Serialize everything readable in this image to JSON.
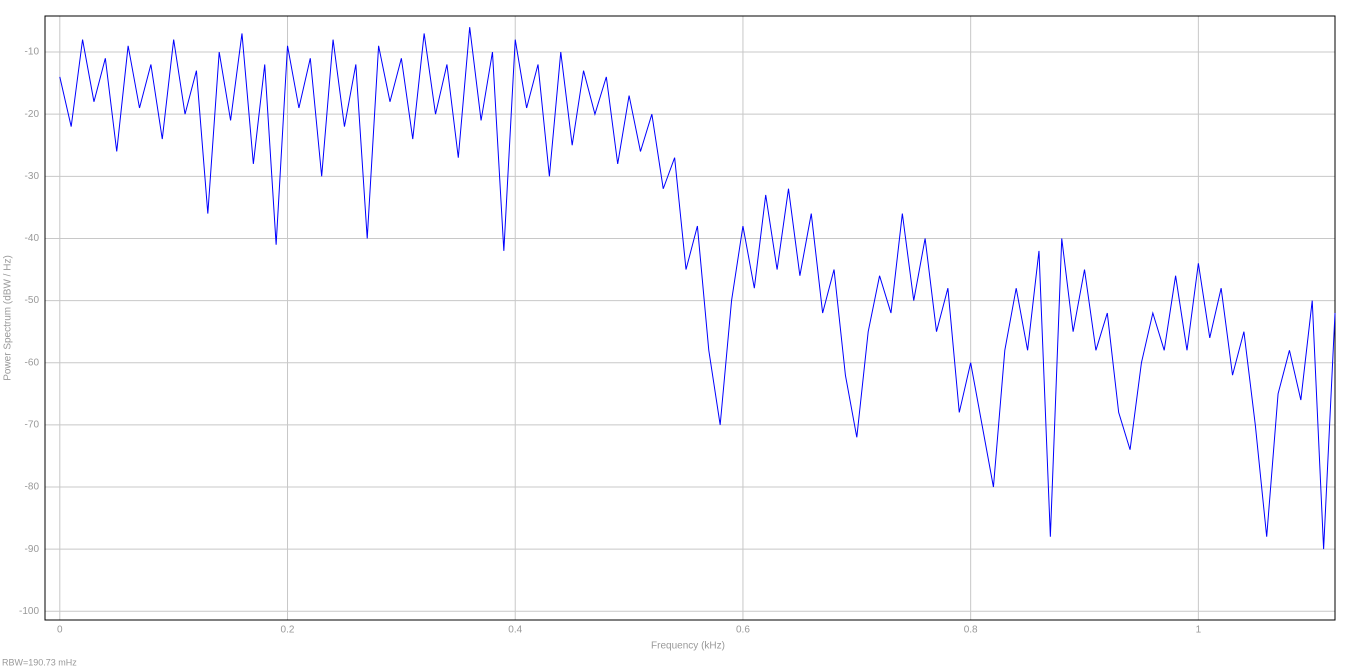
{
  "chart_data": {
    "type": "line",
    "xlabel": "Frequency (kHz)",
    "ylabel": "Power Spectrum (dBW / Hz)",
    "annotation": "RBW=190.73 mHz",
    "xlim": [
      -0.013,
      1.12
    ],
    "ylim": [
      -101.4,
      -4.2
    ],
    "xticks": [
      {
        "value": 0,
        "label": "0"
      },
      0.2,
      0.4,
      0.6,
      0.8,
      1
    ],
    "yticks": [
      -10,
      -20,
      -30,
      -40,
      -50,
      -60,
      -70,
      -80,
      -90,
      -100
    ],
    "grid": true,
    "x": [
      0.0,
      0.01,
      0.02,
      0.03,
      0.04,
      0.05,
      0.06,
      0.07,
      0.08,
      0.09,
      0.1,
      0.11,
      0.12,
      0.13,
      0.14,
      0.15,
      0.16,
      0.17,
      0.18,
      0.19,
      0.2,
      0.21,
      0.22,
      0.23,
      0.24,
      0.25,
      0.26,
      0.27,
      0.28,
      0.29,
      0.3,
      0.31,
      0.32,
      0.33,
      0.34,
      0.35,
      0.36,
      0.37,
      0.38,
      0.39,
      0.4,
      0.41,
      0.42,
      0.43,
      0.44,
      0.45,
      0.46,
      0.47,
      0.48,
      0.49,
      0.5,
      0.51,
      0.52,
      0.53,
      0.54,
      0.55,
      0.56,
      0.57,
      0.58,
      0.59,
      0.6,
      0.61,
      0.62,
      0.63,
      0.64,
      0.65,
      0.66,
      0.67,
      0.68,
      0.69,
      0.7,
      0.71,
      0.72,
      0.73,
      0.74,
      0.75,
      0.76,
      0.77,
      0.78,
      0.79,
      0.8,
      0.81,
      0.82,
      0.83,
      0.84,
      0.85,
      0.86,
      0.87,
      0.88,
      0.89,
      0.9,
      0.91,
      0.92,
      0.93,
      0.94,
      0.95,
      0.96,
      0.97,
      0.98,
      0.99,
      1.0,
      1.01,
      1.02,
      1.03,
      1.04,
      1.05,
      1.06,
      1.07,
      1.08,
      1.09,
      1.1,
      1.11,
      1.12
    ],
    "series": [
      {
        "color": "#0000ff",
        "values": [
          -14,
          -22,
          -8,
          -18,
          -11,
          -26,
          -9,
          -19,
          -12,
          -24,
          -8,
          -20,
          -13,
          -36,
          -10,
          -21,
          -7,
          -28,
          -12,
          -41,
          -9,
          -19,
          -11,
          -30,
          -8,
          -22,
          -12,
          -40,
          -9,
          -18,
          -11,
          -24,
          -7,
          -20,
          -12,
          -27,
          -6,
          -21,
          -10,
          -42,
          -8,
          -19,
          -12,
          -30,
          -10,
          -25,
          -13,
          -20,
          -14,
          -28,
          -17,
          -26,
          -20,
          -32,
          -27,
          -45,
          -38,
          -58,
          -70,
          -50,
          -38,
          -48,
          -33,
          -45,
          -32,
          -46,
          -36,
          -52,
          -45,
          -62,
          -72,
          -55,
          -46,
          -52,
          -36,
          -50,
          -40,
          -55,
          -48,
          -68,
          -60,
          -70,
          -80,
          -58,
          -48,
          -58,
          -42,
          -88,
          -40,
          -55,
          -45,
          -58,
          -52,
          -68,
          -74,
          -60,
          -52,
          -58,
          -46,
          -58,
          -44,
          -56,
          -48,
          -62,
          -55,
          -70,
          -88,
          -65,
          -58,
          -66,
          -50,
          -90,
          -52
        ]
      }
    ]
  }
}
